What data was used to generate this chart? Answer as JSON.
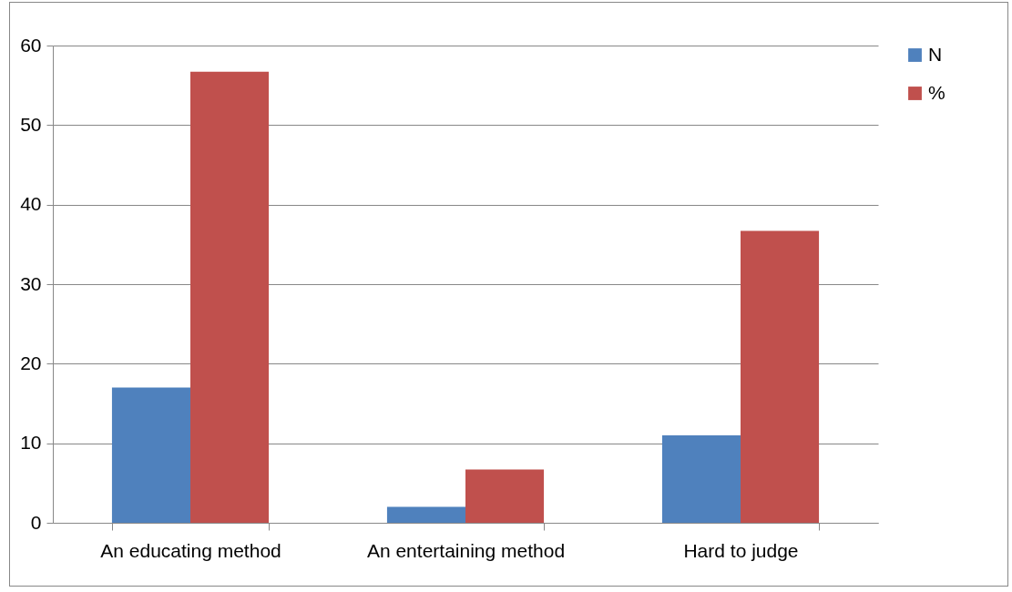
{
  "chart_data": {
    "type": "bar",
    "categories": [
      "An educating  method",
      "An entertaining method",
      "Hard to judge"
    ],
    "series": [
      {
        "name": "N",
        "color": "#4f81bd",
        "values": [
          17,
          2,
          11
        ]
      },
      {
        "name": "%",
        "color": "#c0504d",
        "values": [
          56.7,
          6.7,
          36.7
        ]
      }
    ],
    "ylim": [
      0,
      60
    ],
    "yticks": [
      0,
      10,
      20,
      30,
      40,
      50,
      60
    ],
    "grid": "y",
    "legend": "right"
  }
}
